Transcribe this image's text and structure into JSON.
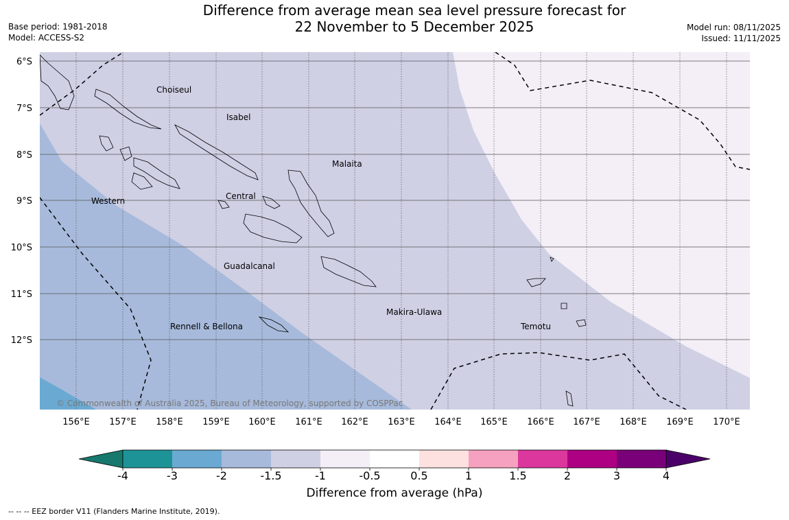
{
  "header": {
    "base_period": "Base period: 1981-2018",
    "model": "Model: ACCESS-S2",
    "title_line1": "Difference from average mean sea level pressure forecast for",
    "title_line2": "22 November to 5 December 2025",
    "model_run": "Model run: 08/11/2025",
    "issued": "Issued: 11/11/2025"
  },
  "map": {
    "lat_labels": [
      "6°S",
      "7°S",
      "8°S",
      "9°S",
      "10°S",
      "11°S",
      "12°S"
    ],
    "lon_labels": [
      "156°E",
      "157°E",
      "158°E",
      "159°E",
      "160°E",
      "161°E",
      "162°E",
      "163°E",
      "164°E",
      "165°E",
      "166°E",
      "167°E",
      "168°E",
      "169°E",
      "170°E"
    ],
    "province_labels": {
      "choiseul": "Choiseul",
      "isabel": "Isabel",
      "malaita": "Malaita",
      "western": "Western",
      "central": "Central",
      "guadalcanal": "Guadalcanal",
      "makira": "Makira-Ulawa",
      "temotu": "Temotu",
      "rennell": "Rennell & Bellona"
    },
    "copyright": "© Commonwealth of Australia 2025, Bureau of Meteorology, supported by COSPPac",
    "colors": {
      "minus2_to_minus3": "#6aaad2",
      "minus1_5_to_minus2": "#a7badb",
      "minus1_to_minus1_5": "#cfd0e4",
      "minus0_5_to_minus1": "#f4eef6"
    }
  },
  "colorbar": {
    "tick_labels": [
      "-4",
      "-3",
      "-2",
      "-1.5",
      "-1",
      "-0.5",
      "0.5",
      "1",
      "1.5",
      "2",
      "3",
      "4"
    ],
    "colors": [
      "#17786d",
      "#1e9397",
      "#6aaad2",
      "#a7badb",
      "#cfd0e4",
      "#f4eef6",
      "#ffffff",
      "#fde0e0",
      "#f6a1bf",
      "#db379d",
      "#ae0082",
      "#7a0079",
      "#4b0069"
    ],
    "label": "Difference from average (hPa)"
  },
  "legend": {
    "eez": "--  --  -- EEZ border V11 (Flanders Marine Institute, 2019)."
  }
}
